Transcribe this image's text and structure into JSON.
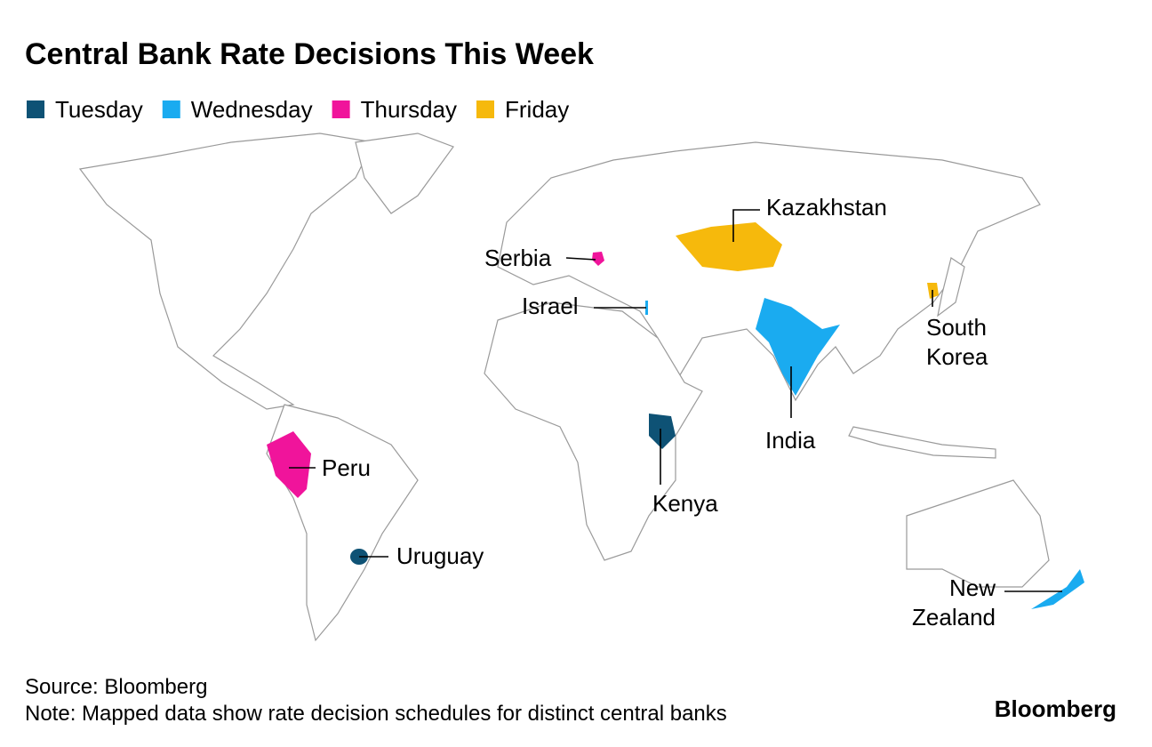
{
  "title": "Central Bank Rate Decisions This Week",
  "legend": [
    {
      "name": "Tuesday",
      "color": "#0e5275"
    },
    {
      "name": "Wednesday",
      "color": "#1aabf0"
    },
    {
      "name": "Thursday",
      "color": "#f0149b"
    },
    {
      "name": "Friday",
      "color": "#f6b90c"
    }
  ],
  "countries": [
    {
      "label": [
        "Kazakhstan"
      ],
      "color": "#f6b90c"
    },
    {
      "label": [
        "Serbia"
      ],
      "color": "#f0149b"
    },
    {
      "label": [
        "Israel"
      ],
      "color": "#1aabf0"
    },
    {
      "label": [
        "South",
        "Korea"
      ],
      "color": "#f6b90c"
    },
    {
      "label": [
        "India"
      ],
      "color": "#1aabf0"
    },
    {
      "label": [
        "Peru"
      ],
      "color": "#f0149b"
    },
    {
      "label": [
        "Kenya"
      ],
      "color": "#0e5275"
    },
    {
      "label": [
        "Uruguay"
      ],
      "color": "#0e5275"
    },
    {
      "label": [
        "New",
        "Zealand"
      ],
      "color": "#1aabf0"
    }
  ],
  "source": "Source: Bloomberg",
  "note": "Note: Mapped data show rate decision schedules for distinct central banks",
  "logo": "Bloomberg"
}
